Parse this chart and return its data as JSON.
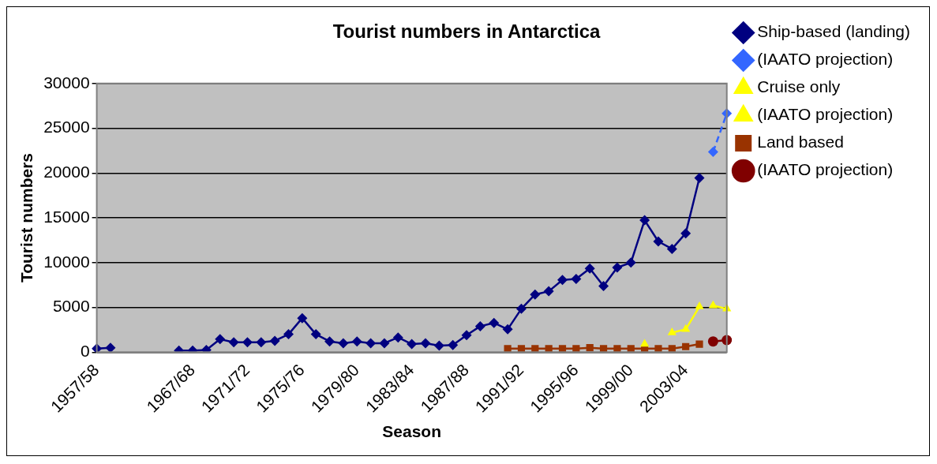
{
  "chart_data": {
    "type": "line",
    "title": "Tourist numbers in Antarctica",
    "xlabel": "Season",
    "ylabel": "Tourist numbers",
    "categories": [
      "1957/58",
      null,
      null,
      null,
      null,
      null,
      null,
      "1967/68",
      null,
      null,
      null,
      "1971/72",
      null,
      null,
      null,
      "1975/76",
      null,
      null,
      null,
      "1979/80",
      null,
      null,
      null,
      "1983/84",
      null,
      null,
      null,
      "1987/88",
      null,
      null,
      null,
      "1991/92",
      null,
      null,
      null,
      "1995/96",
      null,
      null,
      null,
      "1999/00",
      null,
      null,
      null,
      "2003/04",
      null,
      null,
      null
    ],
    "ylim": [
      0,
      30000
    ],
    "yticks": [
      0,
      5000,
      10000,
      15000,
      20000,
      25000,
      30000
    ],
    "grid": "y",
    "legend": "right",
    "series": [
      {
        "name": "Ship-based (landing)",
        "color": "#000080",
        "marker": "diamond",
        "line_style": "solid",
        "values": [
          400,
          500,
          null,
          null,
          null,
          null,
          180,
          180,
          250,
          1450,
          1100,
          1100,
          1100,
          1270,
          2000,
          3800,
          2000,
          1200,
          1000,
          1200,
          1000,
          1000,
          1640,
          900,
          1000,
          730,
          800,
          1900,
          2900,
          3270,
          2550,
          4840,
          6440,
          6800,
          8070,
          8180,
          9350,
          7380,
          9450,
          10000,
          14730,
          12360,
          11530,
          13270,
          19450,
          null,
          null
        ]
      },
      {
        "name": "(IAATO projection)",
        "color": "#3366ff",
        "marker": "diamond",
        "line_style": "dashed",
        "values": [
          null,
          null,
          null,
          null,
          null,
          null,
          null,
          null,
          null,
          null,
          null,
          null,
          null,
          null,
          null,
          null,
          null,
          null,
          null,
          null,
          null,
          null,
          null,
          null,
          null,
          null,
          null,
          null,
          null,
          null,
          null,
          null,
          null,
          null,
          null,
          null,
          null,
          null,
          null,
          null,
          null,
          null,
          null,
          null,
          null,
          22360,
          26650
        ]
      },
      {
        "name": "Cruise only",
        "color": "#ffff00",
        "marker": "triangle",
        "line_style": "solid",
        "values": [
          null,
          null,
          null,
          null,
          null,
          null,
          null,
          null,
          null,
          null,
          null,
          null,
          null,
          null,
          null,
          null,
          null,
          null,
          null,
          null,
          null,
          null,
          null,
          null,
          null,
          null,
          null,
          null,
          null,
          null,
          null,
          null,
          null,
          null,
          null,
          null,
          null,
          null,
          null,
          null,
          900,
          null,
          2180,
          2550,
          5090,
          null,
          null
        ]
      },
      {
        "name": "(IAATO projection)",
        "color": "#ffff00",
        "marker": "triangle",
        "line_style": "solid",
        "values": [
          null,
          null,
          null,
          null,
          null,
          null,
          null,
          null,
          null,
          null,
          null,
          null,
          null,
          null,
          null,
          null,
          null,
          null,
          null,
          null,
          null,
          null,
          null,
          null,
          null,
          null,
          null,
          null,
          null,
          null,
          null,
          null,
          null,
          null,
          null,
          null,
          null,
          null,
          null,
          null,
          null,
          null,
          null,
          null,
          null,
          5200,
          4840
        ]
      },
      {
        "name": "Land based",
        "color": "#993300",
        "marker": "square",
        "line_style": "solid",
        "values": [
          null,
          null,
          null,
          null,
          null,
          null,
          null,
          null,
          null,
          null,
          null,
          null,
          null,
          null,
          null,
          null,
          null,
          null,
          null,
          null,
          null,
          null,
          null,
          null,
          null,
          null,
          null,
          null,
          null,
          null,
          400,
          400,
          400,
          400,
          400,
          400,
          500,
          400,
          400,
          400,
          400,
          400,
          400,
          620,
          900,
          null,
          null
        ]
      },
      {
        "name": "(IAATO projection)",
        "color": "#800000",
        "marker": "circle",
        "line_style": "solid",
        "values": [
          null,
          null,
          null,
          null,
          null,
          null,
          null,
          null,
          null,
          null,
          null,
          null,
          null,
          null,
          null,
          null,
          null,
          null,
          null,
          null,
          null,
          null,
          null,
          null,
          null,
          null,
          null,
          null,
          null,
          null,
          null,
          null,
          null,
          null,
          null,
          null,
          null,
          null,
          null,
          null,
          null,
          null,
          null,
          null,
          null,
          1200,
          1350
        ]
      }
    ]
  }
}
